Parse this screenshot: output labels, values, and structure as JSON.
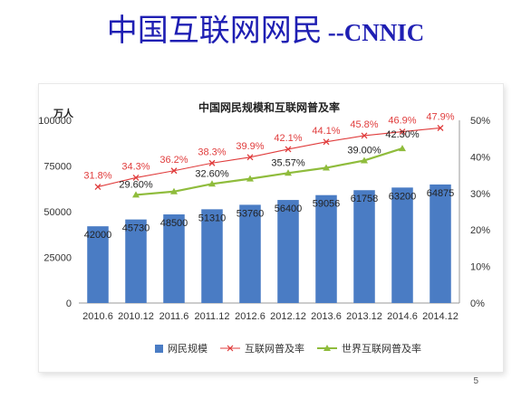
{
  "slide": {
    "title_main": "中国互联网网民",
    "title_suffix": "--CNNIC",
    "page_number": "5"
  },
  "colors": {
    "title": "#1f1fb3",
    "bar": "#4a7cc4",
    "china_line": "#e03c3c",
    "world_line": "#8fbc3c"
  },
  "chart_data": {
    "type": "bar",
    "title": "中国网民规模和互联网普及率",
    "ylabel": "万人",
    "ylim": [
      0,
      100000
    ],
    "y2lim": [
      0,
      0.5
    ],
    "y_ticks": [
      "0",
      "25000",
      "50000",
      "75000",
      "100000"
    ],
    "y2_ticks": [
      "0%",
      "10%",
      "20%",
      "30%",
      "40%",
      "50%"
    ],
    "grid": false,
    "legend_position": "bottom",
    "categories": [
      "2010.6",
      "2010.12",
      "2011.6",
      "2011.12",
      "2012.6",
      "2012.12",
      "2013.6",
      "2013.12",
      "2014.6",
      "2014.12"
    ],
    "series": [
      {
        "name": "网民规模",
        "type": "bar",
        "axis": "left",
        "color": "#4a7cc4",
        "values": [
          42000,
          45730,
          48500,
          51310,
          53760,
          56400,
          59056,
          61758,
          63200,
          64875
        ],
        "labels": [
          "42000",
          "45730",
          "48500",
          "51310",
          "53760",
          "56400",
          "59056",
          "61758",
          "63200",
          "64875"
        ]
      },
      {
        "name": "互联网普及率",
        "type": "line",
        "axis": "right",
        "marker": "x",
        "color": "#e03c3c",
        "values": [
          0.318,
          0.343,
          0.362,
          0.383,
          0.399,
          0.421,
          0.441,
          0.458,
          0.469,
          0.479
        ],
        "labels": [
          "31.8%",
          "34.3%",
          "36.2%",
          "38.3%",
          "39.9%",
          "42.1%",
          "44.1%",
          "45.8%",
          "46.9%",
          "47.9%"
        ]
      },
      {
        "name": "世界互联网普及率",
        "type": "line",
        "axis": "right",
        "marker": "triangle",
        "color": "#8fbc3c",
        "values": [
          null,
          0.296,
          0.305,
          0.326,
          0.34,
          0.3557,
          0.37,
          0.39,
          0.423,
          null
        ],
        "labels": [
          null,
          "29.60%",
          null,
          "32.60%",
          null,
          "35.57%",
          null,
          "39.00%",
          "42.30%",
          null
        ]
      }
    ]
  }
}
